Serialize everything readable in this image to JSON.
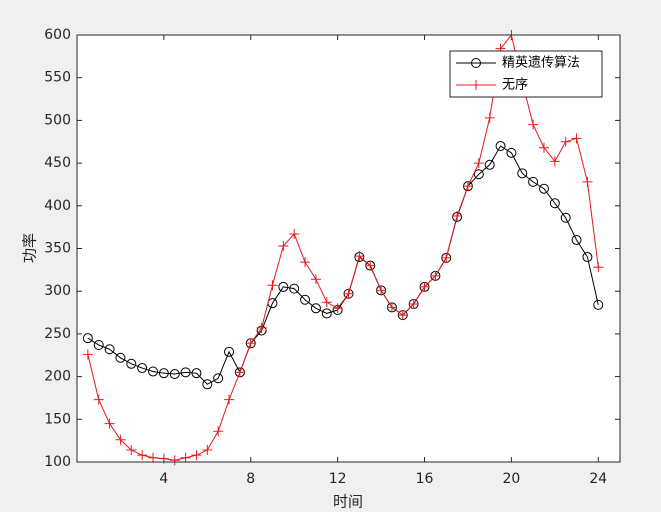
{
  "chart_data": {
    "type": "line",
    "xlabel": "时间",
    "ylabel": "功率",
    "x": [
      0.5,
      1,
      1.5,
      2,
      2.5,
      3,
      3.5,
      4,
      4.5,
      5,
      5.5,
      6,
      6.5,
      7,
      7.5,
      8,
      8.5,
      9,
      9.5,
      10,
      10.5,
      11,
      11.5,
      12,
      12.5,
      13,
      13.5,
      14,
      14.5,
      15,
      15.5,
      16,
      16.5,
      17,
      17.5,
      18,
      18.5,
      19,
      19.5,
      20,
      20.5,
      21,
      21.5,
      22,
      22.5,
      23,
      23.5,
      24
    ],
    "series": [
      {
        "name": "精英遗传算法",
        "color": "#000000",
        "marker": "circle",
        "values": [
          245,
          237,
          232,
          222,
          215,
          210,
          206,
          204,
          203,
          205,
          204,
          191,
          198,
          229,
          205,
          239,
          254,
          286,
          305,
          303,
          290,
          280,
          274,
          278,
          297,
          340,
          330,
          301,
          281,
          272,
          285,
          305,
          318,
          339,
          387,
          423,
          437,
          448,
          470,
          462,
          438,
          428,
          420,
          403,
          386,
          360,
          340,
          284
        ]
      },
      {
        "name": "无序",
        "color": "#e41a1c",
        "marker": "plus",
        "values": [
          226,
          173,
          145,
          126,
          114,
          108,
          105,
          104,
          102,
          105,
          108,
          114,
          136,
          173,
          205,
          239,
          257,
          307,
          353,
          367,
          334,
          314,
          287,
          280,
          297,
          341,
          330,
          301,
          281,
          272,
          285,
          305,
          318,
          339,
          388,
          423,
          450,
          503,
          584,
          600,
          545,
          495,
          468,
          452,
          475,
          479,
          428,
          328
        ]
      }
    ],
    "xlim": [
      0,
      25
    ],
    "ylim": [
      100,
      600
    ],
    "xticks": [
      4,
      8,
      12,
      16,
      20,
      24
    ],
    "yticks": [
      100,
      150,
      200,
      250,
      300,
      350,
      400,
      450,
      500,
      550,
      600
    ],
    "legend": "top-right"
  }
}
